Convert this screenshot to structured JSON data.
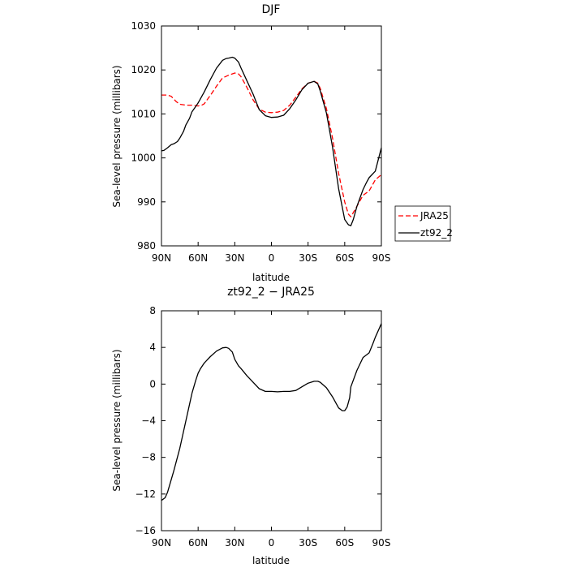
{
  "chart_data": [
    {
      "type": "line",
      "title": "DJF",
      "xlabel": "latitude",
      "ylabel": "Sea-level pressure (millibars)",
      "xlim": [
        90,
        -90
      ],
      "ylim": [
        980,
        1030
      ],
      "x_ticks": [
        90,
        60,
        30,
        0,
        -30,
        -60,
        -90
      ],
      "x_tick_labels": [
        "90N",
        "60N",
        "30N",
        "0",
        "30S",
        "60S",
        "90S"
      ],
      "y_ticks": [
        980,
        990,
        1000,
        1010,
        1020,
        1030
      ],
      "y_tick_labels": [
        "980",
        "990",
        "1000",
        "1010",
        "1020",
        "1030"
      ],
      "legend_position": "right-bottom",
      "series": [
        {
          "name": "JRA25",
          "color": "#ff0000",
          "dash": "dashed",
          "x": [
            90,
            85,
            82,
            78,
            75,
            70,
            65,
            60,
            57,
            55,
            50,
            45,
            40,
            35,
            30,
            27,
            25,
            20,
            15,
            10,
            5,
            0,
            -5,
            -10,
            -15,
            -20,
            -25,
            -30,
            -35,
            -38,
            -40,
            -45,
            -50,
            -55,
            -60,
            -63,
            -65,
            -70,
            -75,
            -80,
            -85,
            -90
          ],
          "y": [
            1014.3,
            1014.3,
            1014,
            1012.8,
            1012.2,
            1012.0,
            1012.0,
            1011.8,
            1012.0,
            1012.3,
            1014.2,
            1016.3,
            1018.2,
            1018.8,
            1019.3,
            1019.1,
            1018.5,
            1016.0,
            1013.2,
            1011.1,
            1010.4,
            1010.3,
            1010.4,
            1010.8,
            1012.0,
            1013.8,
            1015.7,
            1017.0,
            1017.4,
            1017.0,
            1015.8,
            1011.2,
            1004.5,
            996.5,
            990.0,
            987.2,
            986.6,
            989.0,
            991.5,
            992.5,
            995.0,
            996.2
          ]
        },
        {
          "name": "zt92_2",
          "color": "#000000",
          "dash": "solid",
          "x": [
            90,
            88,
            85,
            82,
            80,
            77,
            75,
            72,
            70,
            67,
            65,
            62,
            60,
            55,
            50,
            45,
            40,
            37,
            35,
            32,
            30,
            27,
            25,
            20,
            15,
            10,
            5,
            0,
            -5,
            -10,
            -15,
            -20,
            -25,
            -30,
            -35,
            -38,
            -40,
            -45,
            -50,
            -55,
            -60,
            -63,
            -65,
            -67,
            -70,
            -75,
            -78,
            -80,
            -85,
            -90
          ],
          "y": [
            1001.6,
            1001.7,
            1002.3,
            1003.0,
            1003.2,
            1003.7,
            1004.5,
            1006.0,
            1007.5,
            1009.0,
            1010.5,
            1011.7,
            1012.5,
            1015.0,
            1017.8,
            1020.4,
            1022.2,
            1022.6,
            1022.7,
            1022.9,
            1022.7,
            1021.8,
            1020.5,
            1017.5,
            1014.5,
            1011.0,
            1009.6,
            1009.2,
            1009.3,
            1009.7,
            1011.2,
            1013.2,
            1015.5,
            1017.0,
            1017.4,
            1016.8,
            1015.2,
            1010.2,
            1002.5,
            993.0,
            986.0,
            984.8,
            984.6,
            986.0,
            989.0,
            992.8,
            994.5,
            995.5,
            997.0,
            1002.3
          ]
        }
      ]
    },
    {
      "type": "line",
      "title": "zt92_2 − JRA25",
      "xlabel": "latitude",
      "ylabel": "Sea-level pressure (millibars)",
      "xlim": [
        90,
        -90
      ],
      "ylim": [
        -16,
        8
      ],
      "x_ticks": [
        90,
        60,
        30,
        0,
        -30,
        -60,
        -90
      ],
      "x_tick_labels": [
        "90N",
        "60N",
        "30N",
        "0",
        "30S",
        "60S",
        "90S"
      ],
      "y_ticks": [
        -16,
        -12,
        -8,
        -4,
        0,
        4,
        8
      ],
      "y_tick_labels": [
        "−16",
        "−12",
        "−8",
        "−4",
        "0",
        "4",
        "8"
      ],
      "series": [
        {
          "color": "#000000",
          "dash": "solid",
          "x": [
            90,
            87,
            85,
            80,
            75,
            70,
            65,
            62,
            60,
            58,
            55,
            50,
            45,
            40,
            37,
            35,
            32,
            30,
            27,
            25,
            20,
            15,
            10,
            5,
            0,
            -5,
            -10,
            -15,
            -20,
            -25,
            -30,
            -35,
            -38,
            -40,
            -45,
            -50,
            -55,
            -58,
            -60,
            -62,
            -64,
            -65,
            -70,
            -75,
            -80,
            -83,
            -85,
            -88,
            -90
          ],
          "y": [
            -12.7,
            -12.4,
            -11.8,
            -9.5,
            -7.0,
            -4.0,
            -1.0,
            0.4,
            1.2,
            1.7,
            2.3,
            3.0,
            3.6,
            3.95,
            4.0,
            3.9,
            3.5,
            2.7,
            2.0,
            1.7,
            0.9,
            0.2,
            -0.5,
            -0.8,
            -0.8,
            -0.85,
            -0.8,
            -0.8,
            -0.7,
            -0.3,
            0.1,
            0.3,
            0.3,
            0.2,
            -0.4,
            -1.4,
            -2.6,
            -2.9,
            -2.9,
            -2.5,
            -1.5,
            -0.3,
            1.5,
            2.9,
            3.4,
            4.4,
            5.1,
            6.0,
            6.6
          ]
        }
      ]
    }
  ]
}
